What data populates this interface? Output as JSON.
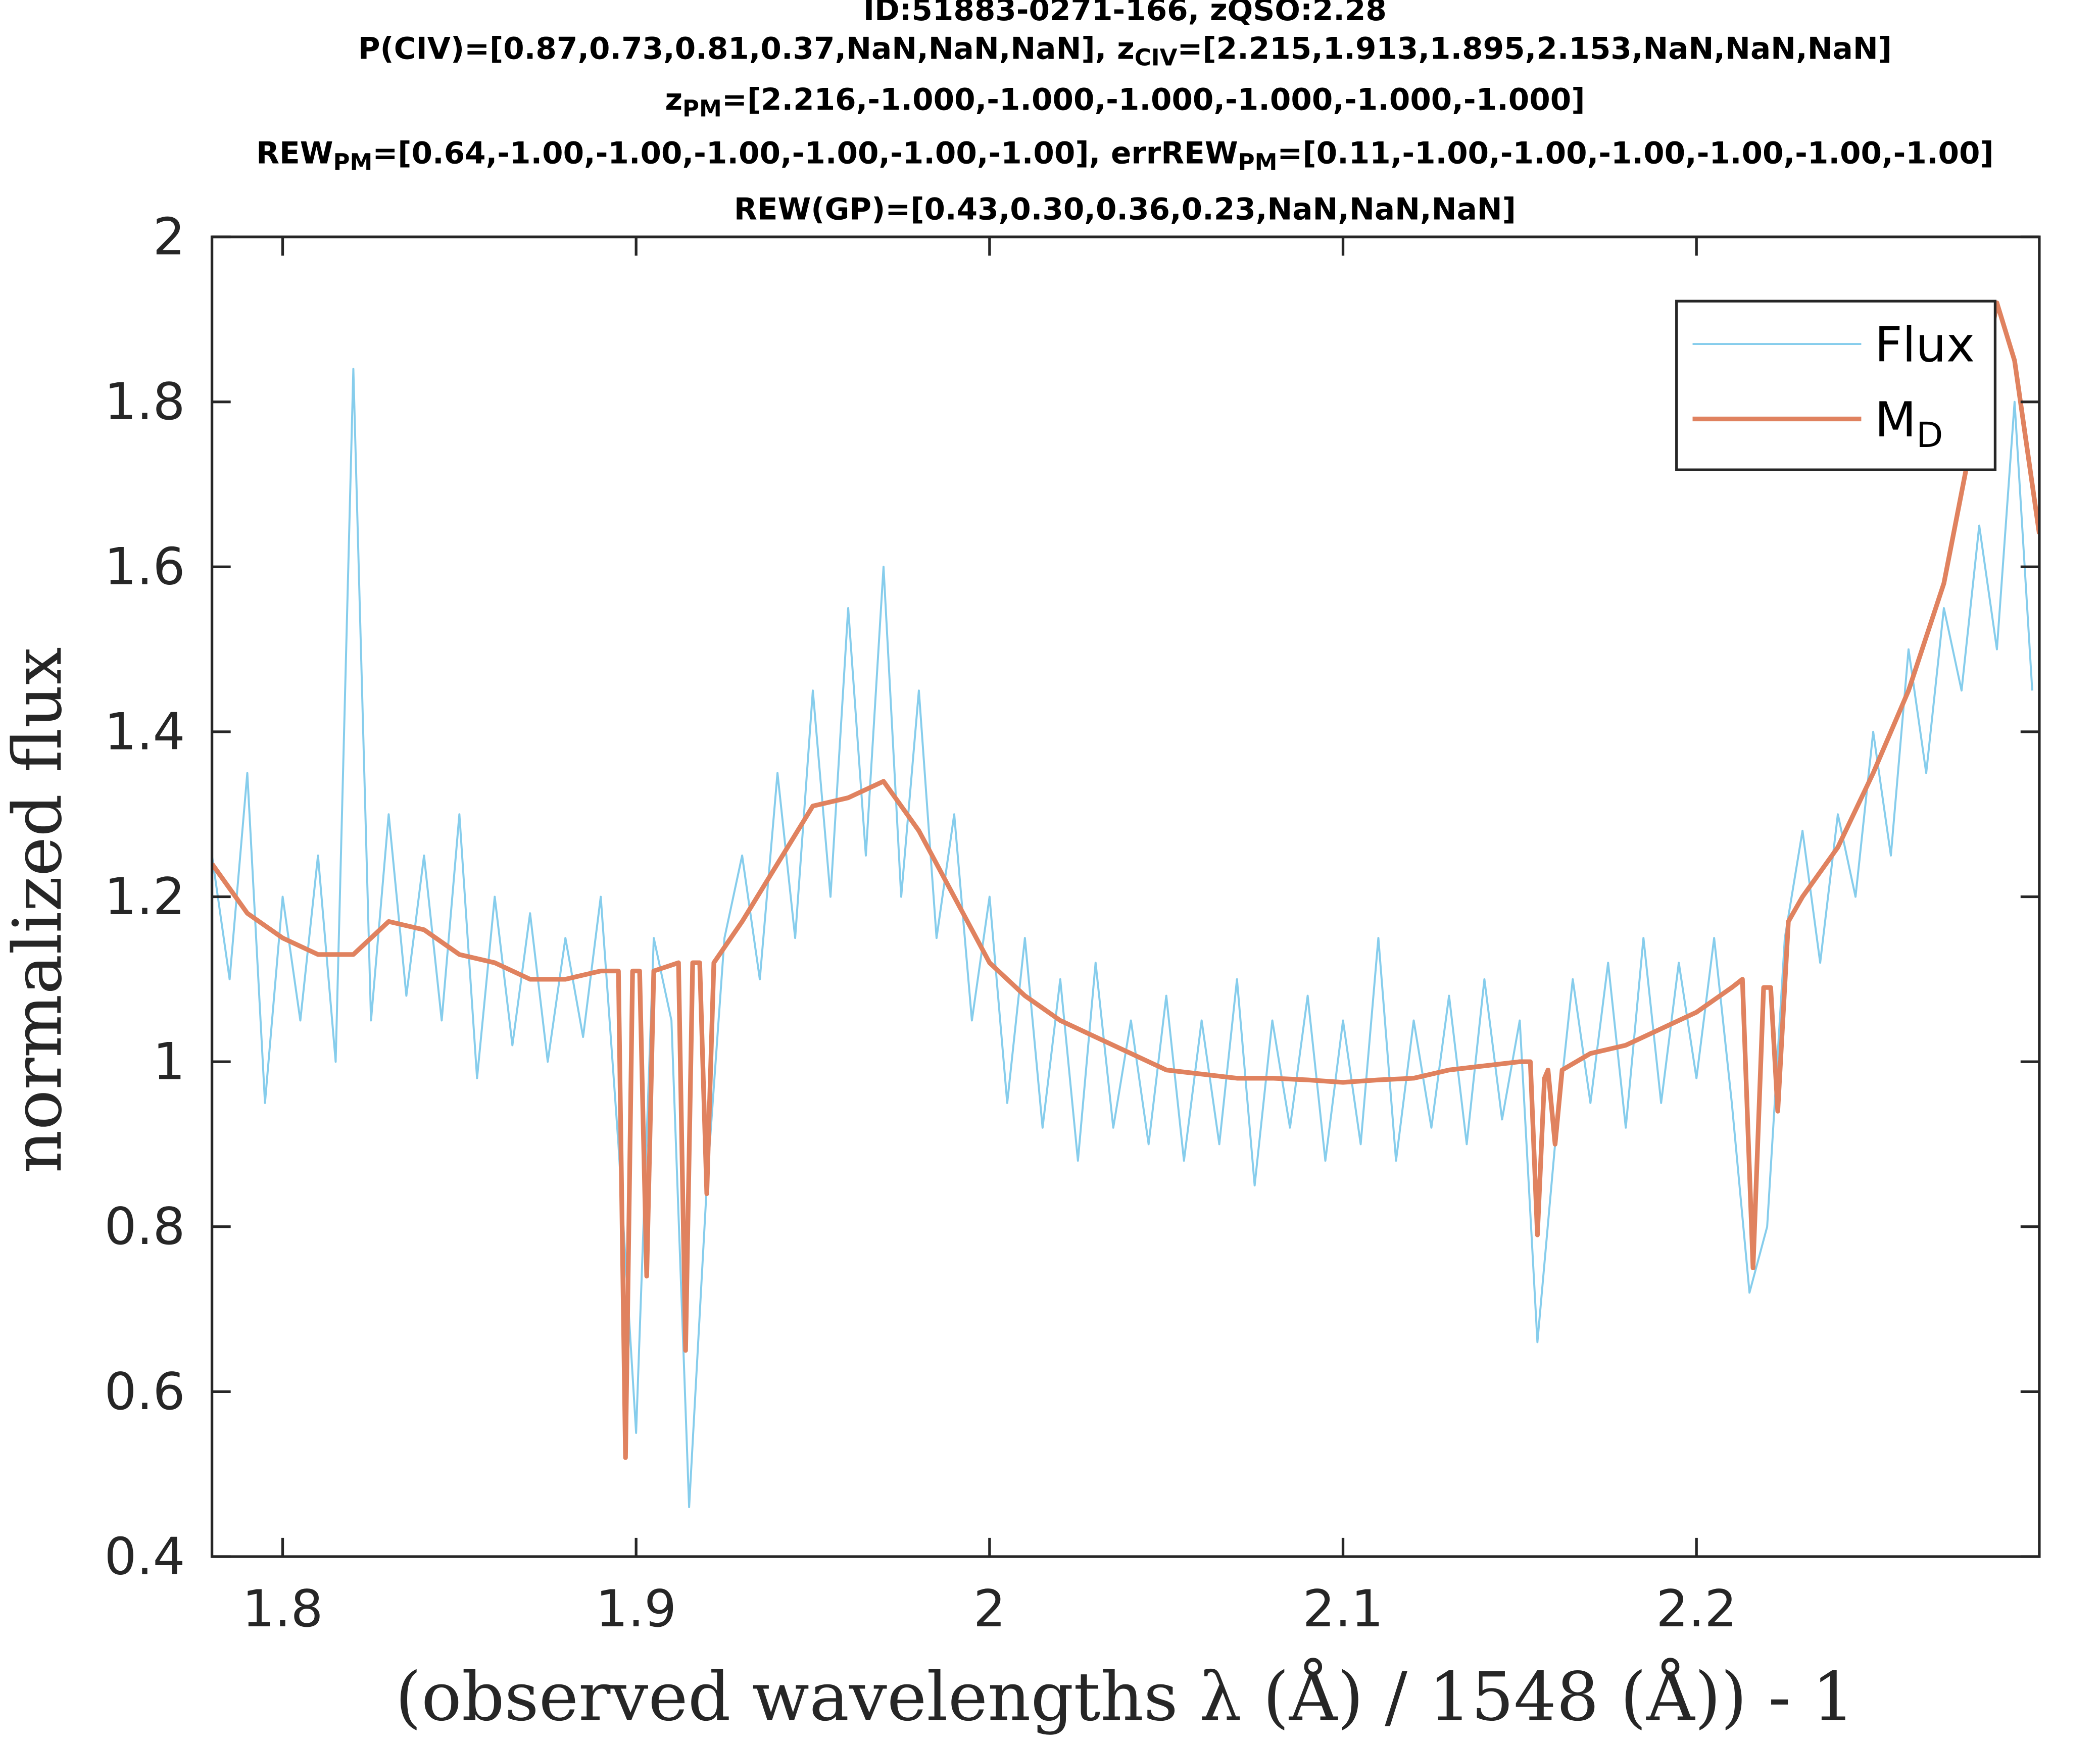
{
  "chart_data": {
    "type": "line",
    "title": [
      [
        "ID:51883-0271-166, zQSO:2.28"
      ],
      [
        "P(CIV)=[0.87,0.73,0.81,0.37,NaN,NaN,NaN], z",
        {
          "sub": "CIV"
        },
        "=[2.215,1.913,1.895,2.153,NaN,NaN,NaN]"
      ],
      [
        "z",
        {
          "sub": "PM"
        },
        "=[2.216,-1.000,-1.000,-1.000,-1.000,-1.000,-1.000]"
      ],
      [
        "REW",
        {
          "sub": "PM"
        },
        "=[0.64,-1.00,-1.00,-1.00,-1.00,-1.00,-1.00], errREW",
        {
          "sub": "PM"
        },
        "=[0.11,-1.00,-1.00,-1.00,-1.00,-1.00,-1.00]"
      ],
      [
        "REW(GP)=[0.43,0.30,0.36,0.23,NaN,NaN,NaN]"
      ]
    ],
    "xlabel": "(observed wavelengths λ (Å) / 1548 (Å)) - 1",
    "ylabel": "normalized flux",
    "xlim": [
      1.78,
      2.297
    ],
    "ylim": [
      0.4,
      2
    ],
    "xticks": [
      1.8,
      1.9,
      2,
      2.1,
      2.2
    ],
    "yticks": [
      0.4,
      0.6,
      0.8,
      1,
      1.2,
      1.4,
      1.6,
      1.8,
      2
    ],
    "legend": "upper right",
    "series": [
      {
        "name": [
          "Flux"
        ],
        "color": "#86cdec",
        "width": 1.5,
        "x": [
          1.78,
          1.785,
          1.79,
          1.795,
          1.8,
          1.805,
          1.81,
          1.815,
          1.82,
          1.825,
          1.83,
          1.835,
          1.84,
          1.845,
          1.85,
          1.855,
          1.86,
          1.865,
          1.87,
          1.875,
          1.88,
          1.885,
          1.89,
          1.895,
          1.9,
          1.905,
          1.91,
          1.915,
          1.92,
          1.925,
          1.93,
          1.935,
          1.94,
          1.945,
          1.95,
          1.955,
          1.96,
          1.965,
          1.97,
          1.975,
          1.98,
          1.985,
          1.99,
          1.995,
          2,
          2.005,
          2.01,
          2.015,
          2.02,
          2.025,
          2.03,
          2.035,
          2.04,
          2.045,
          2.05,
          2.055,
          2.06,
          2.065,
          2.07,
          2.075,
          2.08,
          2.085,
          2.09,
          2.095,
          2.1,
          2.105,
          2.11,
          2.115,
          2.12,
          2.125,
          2.13,
          2.135,
          2.14,
          2.145,
          2.15,
          2.155,
          2.16,
          2.165,
          2.17,
          2.175,
          2.18,
          2.185,
          2.19,
          2.195,
          2.2,
          2.205,
          2.21,
          2.215,
          2.22,
          2.225,
          2.23,
          2.235,
          2.24,
          2.245,
          2.25,
          2.255,
          2.26,
          2.265,
          2.27,
          2.275,
          2.28,
          2.285,
          2.29,
          2.295
        ],
        "values": [
          1.25,
          1.1,
          1.35,
          0.95,
          1.2,
          1.05,
          1.25,
          1.0,
          1.84,
          1.05,
          1.3,
          1.08,
          1.25,
          1.05,
          1.3,
          0.98,
          1.2,
          1.02,
          1.18,
          1.0,
          1.15,
          1.03,
          1.2,
          0.9,
          0.55,
          1.15,
          1.05,
          0.46,
          0.85,
          1.15,
          1.25,
          1.1,
          1.35,
          1.15,
          1.45,
          1.2,
          1.55,
          1.25,
          1.6,
          1.2,
          1.45,
          1.15,
          1.3,
          1.05,
          1.2,
          0.95,
          1.15,
          0.92,
          1.1,
          0.88,
          1.12,
          0.92,
          1.05,
          0.9,
          1.08,
          0.88,
          1.05,
          0.9,
          1.1,
          0.85,
          1.05,
          0.92,
          1.08,
          0.88,
          1.05,
          0.9,
          1.15,
          0.88,
          1.05,
          0.92,
          1.08,
          0.9,
          1.1,
          0.93,
          1.05,
          0.66,
          0.9,
          1.1,
          0.95,
          1.12,
          0.92,
          1.15,
          0.95,
          1.12,
          0.98,
          1.15,
          0.95,
          0.72,
          0.8,
          1.15,
          1.28,
          1.12,
          1.3,
          1.2,
          1.4,
          1.25,
          1.5,
          1.35,
          1.55,
          1.45,
          1.65,
          1.5,
          1.8,
          1.45
        ]
      },
      {
        "name": [
          "M",
          {
            "sub": "D"
          }
        ],
        "color": "#e0825f",
        "width": 3.5,
        "x": [
          1.78,
          1.79,
          1.8,
          1.81,
          1.82,
          1.83,
          1.84,
          1.85,
          1.86,
          1.87,
          1.88,
          1.89,
          1.895,
          1.897,
          1.899,
          1.901,
          1.903,
          1.905,
          1.912,
          1.914,
          1.916,
          1.918,
          1.92,
          1.922,
          1.93,
          1.94,
          1.95,
          1.96,
          1.97,
          1.98,
          1.99,
          2,
          2.01,
          2.02,
          2.03,
          2.04,
          2.05,
          2.06,
          2.07,
          2.08,
          2.09,
          2.1,
          2.11,
          2.12,
          2.13,
          2.15,
          2.153,
          2.155,
          2.157,
          2.158,
          2.16,
          2.162,
          2.17,
          2.18,
          2.19,
          2.2,
          2.21,
          2.213,
          2.216,
          2.219,
          2.221,
          2.223,
          2.226,
          2.23,
          2.24,
          2.25,
          2.26,
          2.27,
          2.28,
          2.285,
          2.29,
          2.297
        ],
        "values": [
          1.24,
          1.18,
          1.15,
          1.13,
          1.13,
          1.17,
          1.16,
          1.13,
          1.12,
          1.1,
          1.1,
          1.11,
          1.11,
          0.52,
          1.11,
          1.11,
          0.74,
          1.11,
          1.12,
          0.65,
          1.12,
          1.12,
          0.84,
          1.12,
          1.17,
          1.24,
          1.31,
          1.32,
          1.34,
          1.28,
          1.2,
          1.12,
          1.08,
          1.05,
          1.03,
          1.01,
          0.99,
          0.985,
          0.98,
          0.98,
          0.978,
          0.975,
          0.978,
          0.98,
          0.99,
          1.0,
          1.0,
          0.79,
          0.98,
          0.99,
          0.9,
          0.99,
          1.01,
          1.02,
          1.04,
          1.06,
          1.09,
          1.1,
          0.75,
          1.09,
          1.09,
          0.94,
          1.17,
          1.2,
          1.26,
          1.35,
          1.45,
          1.58,
          1.8,
          1.92,
          1.85,
          1.64
        ]
      }
    ]
  }
}
